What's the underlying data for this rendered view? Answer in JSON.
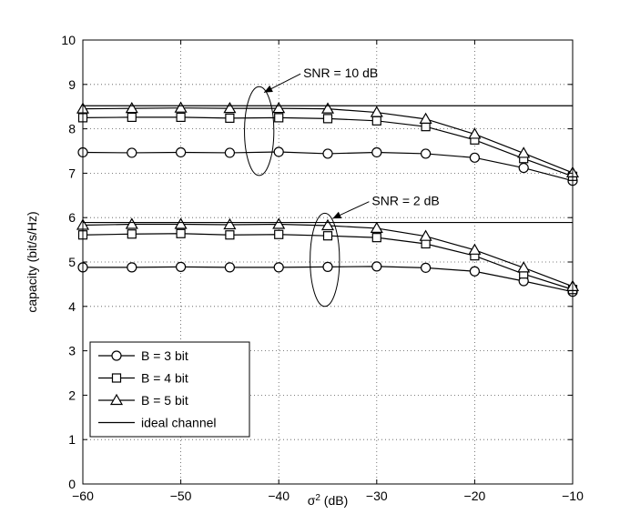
{
  "chart_data": {
    "type": "line",
    "xlabel": "σ",
    "xlabel_sup": "2",
    "xlabel_suffix": " (dB)",
    "ylabel": "capacity (bit/s/Hz)",
    "xlim": [
      -60,
      -10
    ],
    "ylim": [
      0,
      10
    ],
    "xticks": [
      -60,
      -50,
      -40,
      -30,
      -20,
      -10
    ],
    "yticks": [
      0,
      1,
      2,
      3,
      4,
      5,
      6,
      7,
      8,
      9,
      10
    ],
    "grid": true,
    "legend_position": "bottom-left",
    "x": [
      -60,
      -55,
      -50,
      -45,
      -40,
      -35,
      -30,
      -25,
      -20,
      -15,
      -10
    ],
    "series": [
      {
        "name": "B = 3 bit",
        "marker": "circle",
        "group": "SNR = 10 dB",
        "values": [
          7.47,
          7.46,
          7.47,
          7.46,
          7.48,
          7.44,
          7.47,
          7.44,
          7.35,
          7.12,
          6.83
        ]
      },
      {
        "name": "B = 4 bit",
        "marker": "square",
        "group": "SNR = 10 dB",
        "values": [
          8.25,
          8.26,
          8.26,
          8.24,
          8.25,
          8.23,
          8.18,
          8.05,
          7.75,
          7.33,
          6.93
        ]
      },
      {
        "name": "B = 5 bit",
        "marker": "triangle",
        "group": "SNR = 10 dB",
        "values": [
          8.45,
          8.46,
          8.47,
          8.46,
          8.46,
          8.45,
          8.37,
          8.22,
          7.88,
          7.45,
          7.01
        ]
      },
      {
        "name": "ideal channel",
        "marker": "none",
        "group": "SNR = 10 dB",
        "values": [
          8.52,
          8.52,
          8.52,
          8.52,
          8.52,
          8.52,
          8.52,
          8.52,
          8.52,
          8.52,
          8.52
        ]
      },
      {
        "name": "B = 3 bit",
        "marker": "circle",
        "group": "SNR = 2 dB",
        "values": [
          4.88,
          4.88,
          4.89,
          4.88,
          4.88,
          4.89,
          4.9,
          4.87,
          4.79,
          4.57,
          4.33
        ]
      },
      {
        "name": "B = 4 bit",
        "marker": "square",
        "group": "SNR = 2 dB",
        "values": [
          5.61,
          5.63,
          5.64,
          5.61,
          5.62,
          5.59,
          5.55,
          5.41,
          5.14,
          4.73,
          4.38
        ]
      },
      {
        "name": "B = 5 bit",
        "marker": "triangle",
        "group": "SNR = 2 dB",
        "values": [
          5.83,
          5.85,
          5.85,
          5.84,
          5.85,
          5.82,
          5.76,
          5.58,
          5.27,
          4.87,
          4.45
        ]
      },
      {
        "name": "ideal channel",
        "marker": "none",
        "group": "SNR = 2 dB",
        "values": [
          5.89,
          5.89,
          5.89,
          5.89,
          5.89,
          5.89,
          5.89,
          5.89,
          5.89,
          5.89,
          5.89
        ]
      }
    ],
    "legend": [
      {
        "label": "B = 3 bit",
        "marker": "circle"
      },
      {
        "label": "B = 4 bit",
        "marker": "square"
      },
      {
        "label": "B = 5 bit",
        "marker": "triangle"
      },
      {
        "label": "ideal channel",
        "marker": "none"
      }
    ],
    "annotations": [
      {
        "text": "SNR = 10 dB",
        "ellipse_center": [
          -42,
          7.95
        ],
        "ellipse_rx": 1.5,
        "ellipse_ry": 1.0,
        "arrow_to": [
          -41.5,
          8.82
        ],
        "text_at": [
          -37.5,
          9.28
        ]
      },
      {
        "text": "SNR = 2 dB",
        "ellipse_center": [
          -35.3,
          5.05
        ],
        "ellipse_rx": 1.5,
        "ellipse_ry": 1.05,
        "arrow_to": [
          -34.5,
          5.98
        ],
        "text_at": [
          -30.5,
          6.4
        ]
      }
    ]
  }
}
